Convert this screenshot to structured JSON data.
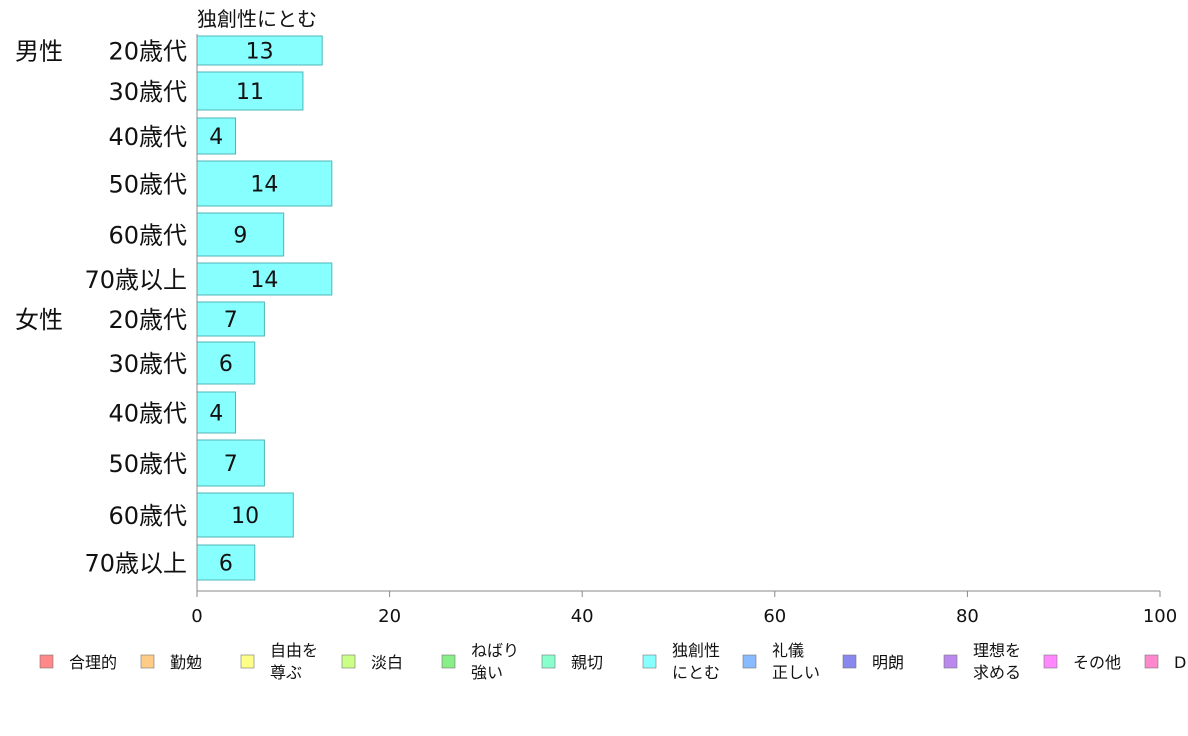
{
  "chart_data": {
    "type": "bar",
    "orientation": "horizontal",
    "title": "独創性にとむ",
    "groups": [
      {
        "label": "男性",
        "rows": [
          {
            "label": "20歳代",
            "value": 13
          },
          {
            "label": "30歳代",
            "value": 11
          },
          {
            "label": "40歳代",
            "value": 4
          },
          {
            "label": "50歳代",
            "value": 14
          },
          {
            "label": "60歳代",
            "value": 9
          },
          {
            "label": "70歳以上",
            "value": 14
          }
        ]
      },
      {
        "label": "女性",
        "rows": [
          {
            "label": "20歳代",
            "value": 7
          },
          {
            "label": "30歳代",
            "value": 6
          },
          {
            "label": "40歳代",
            "value": 4
          },
          {
            "label": "50歳代",
            "value": 7
          },
          {
            "label": "60歳代",
            "value": 10
          },
          {
            "label": "70歳以上",
            "value": 6
          }
        ]
      }
    ],
    "xlim": [
      0,
      100
    ],
    "xticks": [
      "0",
      "20",
      "40",
      "60",
      "80",
      "100"
    ],
    "grid": false,
    "bar_color": "#88ffff",
    "legend_position": "bottom",
    "legend": [
      {
        "label": [
          "合理的"
        ],
        "color": "#ff8888"
      },
      {
        "label": [
          "勤勉"
        ],
        "color": "#ffcc88"
      },
      {
        "label": [
          "自由を",
          "尊ぶ"
        ],
        "color": "#ffff88"
      },
      {
        "label": [
          "淡白"
        ],
        "color": "#ccff88"
      },
      {
        "label": [
          "ねばり",
          "強い"
        ],
        "color": "#88ee88"
      },
      {
        "label": [
          "親切"
        ],
        "color": "#88ffcc"
      },
      {
        "label": [
          "独創性",
          "にとむ"
        ],
        "color": "#88ffff"
      },
      {
        "label": [
          "礼儀",
          "正しい"
        ],
        "color": "#88bbff"
      },
      {
        "label": [
          "明朗"
        ],
        "color": "#8888ee"
      },
      {
        "label": [
          "理想を",
          "求める"
        ],
        "color": "#bb88ee"
      },
      {
        "label": [
          "その他"
        ],
        "color": "#ff88ff"
      },
      {
        "label": [
          "D"
        ],
        "color": "#ff88cc"
      }
    ]
  }
}
